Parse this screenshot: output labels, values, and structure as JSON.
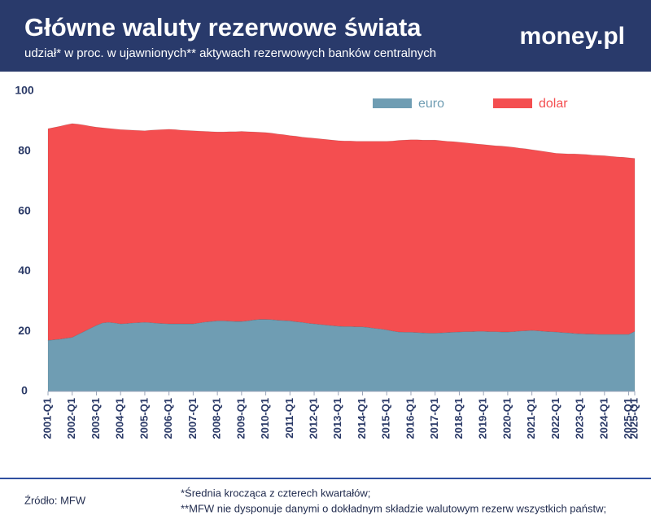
{
  "header": {
    "title": "Główne waluty rezerwowe świata",
    "subtitle": "udział* w proc. w ujawnionych** aktywach rezerwowych banków centralnych",
    "logo": "money.pl"
  },
  "chart_data": {
    "type": "stacked-area",
    "categories": [
      "2001-Q1",
      null,
      null,
      null,
      "2002-Q1",
      null,
      null,
      null,
      "2003-Q1",
      null,
      null,
      null,
      "2004-Q1",
      null,
      null,
      null,
      "2005-Q1",
      null,
      null,
      null,
      "2006-Q1",
      null,
      null,
      null,
      "2007-Q1",
      null,
      null,
      null,
      "2008-Q1",
      null,
      null,
      null,
      "2009-Q1",
      null,
      null,
      null,
      "2010-Q1",
      null,
      null,
      null,
      "2011-Q1",
      null,
      null,
      null,
      "2012-Q1",
      null,
      null,
      null,
      "2013-Q1",
      null,
      null,
      null,
      "2014-Q1",
      null,
      null,
      null,
      "2015-Q1",
      null,
      null,
      null,
      "2016-Q1",
      null,
      null,
      null,
      "2017-Q1",
      null,
      null,
      null,
      "2018-Q1",
      null,
      null,
      null,
      "2019-Q1",
      null,
      null,
      null,
      "2020-Q1",
      null,
      null,
      null,
      "2021-Q1",
      null,
      null,
      null,
      "2022-Q1",
      null,
      null,
      null,
      "2023-Q1",
      null,
      null,
      null,
      "2024-Q1",
      null,
      null,
      null,
      "2025-Q1",
      "2025-Q1"
    ],
    "series": [
      {
        "name": "euro",
        "color": "#6f9db3",
        "values": [
          17.0,
          17.2,
          17.4,
          17.7,
          18.0,
          19.0,
          20.0,
          21.0,
          22.0,
          22.8,
          23.0,
          22.8,
          22.5,
          22.6,
          22.8,
          22.9,
          23.0,
          22.9,
          22.7,
          22.6,
          22.5,
          22.5,
          22.5,
          22.5,
          22.5,
          22.8,
          23.1,
          23.3,
          23.5,
          23.5,
          23.4,
          23.3,
          23.3,
          23.5,
          23.8,
          24.0,
          24.0,
          23.9,
          23.7,
          23.6,
          23.5,
          23.2,
          23.0,
          22.7,
          22.5,
          22.3,
          22.1,
          21.9,
          21.7,
          21.6,
          21.6,
          21.5,
          21.5,
          21.3,
          21.0,
          20.8,
          20.5,
          20.1,
          19.8,
          19.7,
          19.7,
          19.6,
          19.5,
          19.4,
          19.4,
          19.5,
          19.6,
          19.7,
          19.8,
          19.9,
          19.9,
          20.0,
          20.0,
          19.9,
          19.9,
          19.8,
          19.8,
          19.9,
          20.1,
          20.2,
          20.3,
          20.2,
          20.0,
          19.9,
          19.8,
          19.6,
          19.5,
          19.3,
          19.2,
          19.1,
          19.1,
          19.0,
          19.0,
          19.0,
          19.0,
          19.0,
          19.0,
          20.0
        ]
      },
      {
        "name": "dolar",
        "color": "#f44e50",
        "values": [
          70.5,
          70.7,
          70.9,
          71.1,
          71.2,
          70.0,
          68.7,
          67.3,
          66.0,
          65.0,
          64.6,
          64.6,
          64.7,
          64.5,
          64.2,
          64.0,
          63.8,
          64.1,
          64.4,
          64.6,
          64.8,
          64.7,
          64.5,
          64.4,
          64.3,
          63.9,
          63.5,
          63.2,
          62.9,
          62.9,
          63.1,
          63.2,
          63.3,
          63.0,
          62.6,
          62.3,
          62.2,
          62.1,
          62.0,
          61.9,
          61.7,
          61.8,
          61.7,
          61.8,
          61.8,
          61.8,
          61.8,
          61.8,
          61.8,
          61.8,
          61.8,
          61.8,
          61.8,
          62.0,
          62.3,
          62.5,
          62.8,
          63.3,
          63.8,
          64.0,
          64.1,
          64.2,
          64.2,
          64.3,
          64.3,
          64.0,
          63.7,
          63.5,
          63.2,
          62.9,
          62.7,
          62.4,
          62.2,
          62.1,
          61.9,
          61.9,
          61.7,
          61.4,
          60.9,
          60.6,
          60.2,
          60.0,
          59.9,
          59.7,
          59.5,
          59.6,
          59.6,
          59.8,
          59.8,
          59.8,
          59.6,
          59.6,
          59.5,
          59.3,
          59.1,
          59.0,
          58.8,
          57.6
        ]
      }
    ],
    "ylim": [
      0,
      100
    ],
    "yticks": [
      0,
      20,
      40,
      60,
      80,
      100
    ],
    "grid": false
  },
  "footer": {
    "source": "Źródło: MFW",
    "notes": [
      "*Średnia krocząca z czterech kwartałów;",
      "**MFW nie dysponuje danymi o dokładnym składzie walutowym rezerw wszystkich państw;"
    ]
  }
}
